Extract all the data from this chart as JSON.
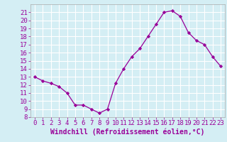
{
  "x": [
    0,
    1,
    2,
    3,
    4,
    5,
    6,
    7,
    8,
    9,
    10,
    11,
    12,
    13,
    14,
    15,
    16,
    17,
    18,
    19,
    20,
    21,
    22,
    23
  ],
  "y": [
    13.0,
    12.5,
    12.2,
    11.8,
    11.0,
    9.5,
    9.5,
    9.0,
    8.5,
    9.0,
    12.2,
    14.0,
    15.5,
    16.5,
    18.0,
    19.5,
    21.0,
    21.2,
    20.5,
    18.5,
    17.5,
    17.0,
    15.5,
    14.3
  ],
  "line_color": "#990099",
  "marker": "D",
  "marker_size": 2.2,
  "xlabel": "Windchill (Refroidissement éolien,°C)",
  "xlabel_fontsize": 7,
  "background_color": "#d4eef4",
  "grid_color": "#ffffff",
  "ylim": [
    8,
    22
  ],
  "xlim": [
    -0.5,
    23.5
  ],
  "yticks": [
    8,
    9,
    10,
    11,
    12,
    13,
    14,
    15,
    16,
    17,
    18,
    19,
    20,
    21
  ],
  "xticks": [
    0,
    1,
    2,
    3,
    4,
    5,
    6,
    7,
    8,
    9,
    10,
    11,
    12,
    13,
    14,
    15,
    16,
    17,
    18,
    19,
    20,
    21,
    22,
    23
  ],
  "tick_fontsize": 6.5,
  "tick_color": "#990099",
  "label_color": "#990099",
  "spine_color": "#aaaaaa"
}
